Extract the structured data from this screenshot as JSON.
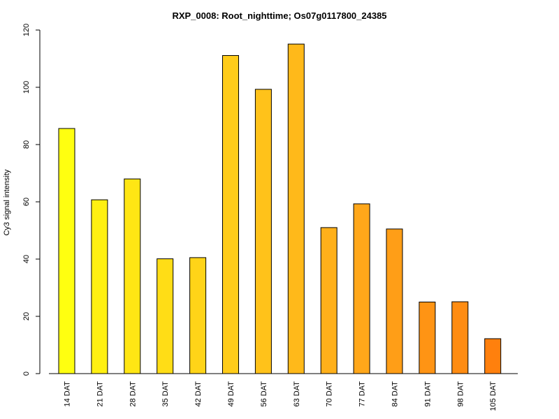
{
  "chart_data": {
    "type": "bar",
    "title": "RXP_0008: Root_nighttime; Os07g0117800_24385",
    "xlabel": "",
    "ylabel": "Cy3 signal intensity",
    "categories": [
      "14 DAT",
      "21 DAT",
      "28 DAT",
      "35 DAT",
      "42 DAT",
      "49 DAT",
      "56 DAT",
      "63 DAT",
      "70 DAT",
      "77 DAT",
      "84 DAT",
      "91 DAT",
      "98 DAT",
      "105 DAT"
    ],
    "values": [
      85.6,
      60.7,
      68.0,
      40.1,
      40.5,
      111.1,
      99.3,
      115.1,
      51.0,
      59.3,
      50.5,
      25.0,
      25.1,
      12.2
    ],
    "colors": [
      "#FFFF10",
      "#FFF012",
      "#FFE614",
      "#FFDD16",
      "#FFD418",
      "#FFCC1A",
      "#FFC21A",
      "#FFB91A",
      "#FFB01A",
      "#FFA71A",
      "#FF9E17",
      "#FF9414",
      "#FF8C12",
      "#FF800D"
    ],
    "ylim": [
      0,
      120
    ],
    "yticks": [
      0,
      20,
      40,
      60,
      80,
      100,
      120
    ],
    "grid": false,
    "legend": "none"
  }
}
